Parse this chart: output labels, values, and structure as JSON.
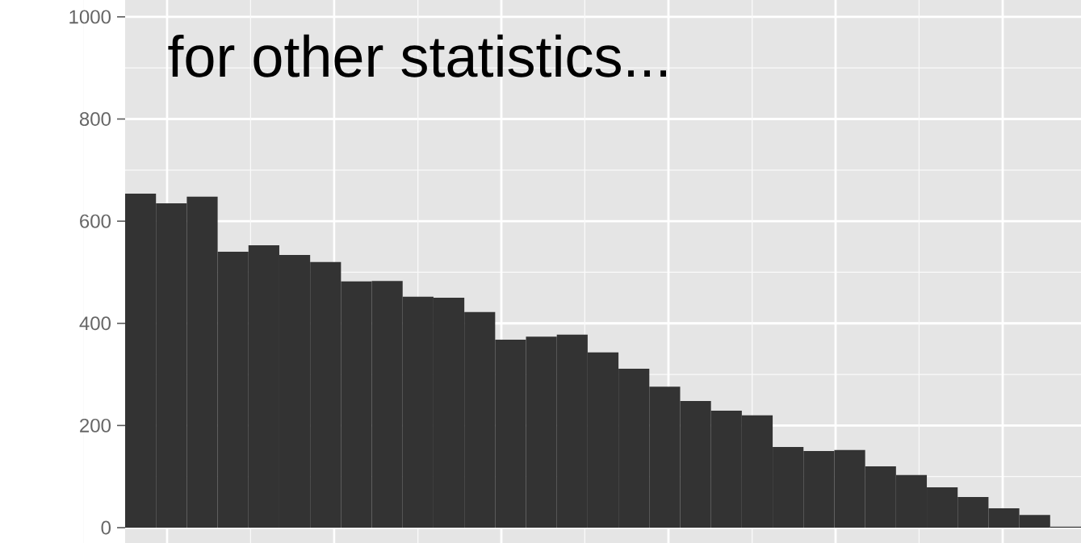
{
  "chart_data": {
    "type": "bar",
    "annotations": [
      "for other statistics..."
    ],
    "categories": [
      null,
      null,
      null,
      null,
      null,
      null,
      null,
      null,
      null,
      null,
      null,
      null,
      null,
      null,
      null,
      null,
      null,
      null,
      null,
      null,
      null,
      null,
      null,
      null,
      null,
      null,
      null,
      null,
      null,
      null,
      null
    ],
    "values": [
      654,
      635,
      648,
      540,
      553,
      534,
      520,
      482,
      483,
      452,
      450,
      422,
      368,
      374,
      378,
      343,
      311,
      276,
      248,
      229,
      220,
      158,
      150,
      152,
      120,
      103,
      79,
      60,
      38,
      25,
      2
    ],
    "color": "#333333",
    "ylim": [
      -30,
      1033
    ],
    "yticks": [
      0,
      200,
      400,
      600,
      800,
      1000
    ],
    "grid": true
  }
}
